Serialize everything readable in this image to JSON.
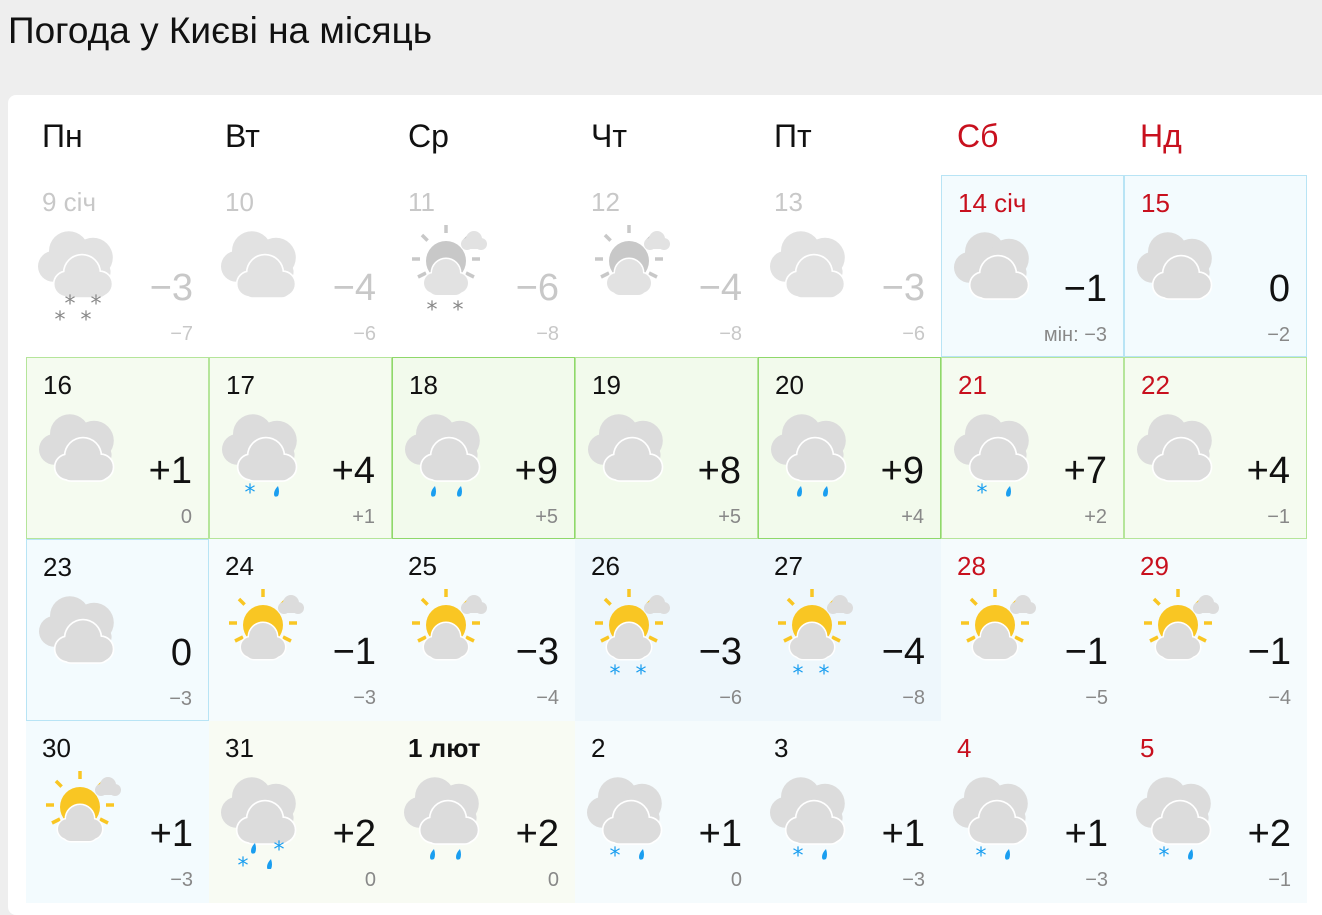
{
  "title": "Погода у Києві на місяць",
  "weekdays": [
    {
      "label": "Пн",
      "weekend": false
    },
    {
      "label": "Вт",
      "weekend": false
    },
    {
      "label": "Ср",
      "weekend": false
    },
    {
      "label": "Чт",
      "weekend": false
    },
    {
      "label": "Пт",
      "weekend": false
    },
    {
      "label": "Сб",
      "weekend": true
    },
    {
      "label": "Нд",
      "weekend": true
    }
  ],
  "colors": {
    "weekend": "#c8101e",
    "sun": "#f9c623",
    "precip": "#1a9ef0",
    "cloud": "#dcdcdc"
  },
  "days": [
    {
      "date": "9 січ",
      "past": true,
      "icon": "overcast",
      "precip": [
        "snow",
        "snow",
        "snow",
        "snow"
      ],
      "max": "−3",
      "min": "−7"
    },
    {
      "date": "10",
      "past": true,
      "icon": "overcast",
      "precip": [],
      "max": "−4",
      "min": "−6"
    },
    {
      "date": "11",
      "past": true,
      "icon": "partly-cloudy",
      "precip": [
        "snow",
        "snow"
      ],
      "max": "−6",
      "min": "−8"
    },
    {
      "date": "12",
      "past": true,
      "icon": "partly-cloudy",
      "precip": [],
      "max": "−4",
      "min": "−8"
    },
    {
      "date": "13",
      "past": true,
      "icon": "overcast",
      "precip": [],
      "max": "−3",
      "min": "−6"
    },
    {
      "date": "14 січ",
      "today": true,
      "icon": "overcast",
      "precip": [],
      "max": "−1",
      "min": "мін: −3"
    },
    {
      "date": "15",
      "icon": "overcast",
      "precip": [],
      "max": "0",
      "min": "−2"
    },
    {
      "date": "16",
      "icon": "overcast",
      "precip": [],
      "max": "+1",
      "min": "0"
    },
    {
      "date": "17",
      "icon": "overcast",
      "precip": [
        "snow",
        "rain"
      ],
      "max": "+4",
      "min": "+1"
    },
    {
      "date": "18",
      "icon": "overcast",
      "precip": [
        "rain",
        "rain"
      ],
      "max": "+9",
      "min": "+5"
    },
    {
      "date": "19",
      "icon": "overcast",
      "precip": [],
      "max": "+8",
      "min": "+5"
    },
    {
      "date": "20",
      "icon": "overcast",
      "precip": [
        "rain",
        "rain"
      ],
      "max": "+9",
      "min": "+4"
    },
    {
      "date": "21",
      "icon": "overcast",
      "precip": [
        "snow",
        "rain"
      ],
      "max": "+7",
      "min": "+2"
    },
    {
      "date": "22",
      "icon": "overcast",
      "precip": [],
      "max": "+4",
      "min": "−1"
    },
    {
      "date": "23",
      "icon": "overcast",
      "precip": [],
      "max": "0",
      "min": "−3"
    },
    {
      "date": "24",
      "icon": "partly-cloudy",
      "precip": [],
      "max": "−1",
      "min": "−3"
    },
    {
      "date": "25",
      "icon": "partly-cloudy",
      "precip": [],
      "max": "−3",
      "min": "−4"
    },
    {
      "date": "26",
      "icon": "partly-cloudy",
      "precip": [
        "snow",
        "snow"
      ],
      "max": "−3",
      "min": "−6"
    },
    {
      "date": "27",
      "icon": "partly-cloudy",
      "precip": [
        "snow",
        "snow"
      ],
      "max": "−4",
      "min": "−8"
    },
    {
      "date": "28",
      "icon": "partly-cloudy",
      "precip": [],
      "max": "−1",
      "min": "−5"
    },
    {
      "date": "29",
      "icon": "partly-cloudy",
      "precip": [],
      "max": "−1",
      "min": "−4"
    },
    {
      "date": "30",
      "icon": "partly-cloudy",
      "precip": [],
      "max": "+1",
      "min": "−3"
    },
    {
      "date": "31",
      "icon": "overcast",
      "precip": [
        "rain",
        "snow",
        "snow",
        "rain"
      ],
      "max": "+2",
      "min": "0"
    },
    {
      "date": "1 лют",
      "bold": true,
      "icon": "overcast",
      "precip": [
        "rain",
        "rain"
      ],
      "max": "+2",
      "min": "0"
    },
    {
      "date": "2",
      "icon": "overcast",
      "precip": [
        "snow",
        "rain"
      ],
      "max": "+1",
      "min": "0"
    },
    {
      "date": "3",
      "icon": "overcast",
      "precip": [
        "snow",
        "rain"
      ],
      "max": "+1",
      "min": "−3"
    },
    {
      "date": "4",
      "icon": "overcast",
      "precip": [
        "snow",
        "rain"
      ],
      "max": "+1",
      "min": "−3"
    },
    {
      "date": "5",
      "icon": "overcast",
      "precip": [
        "snow",
        "rain"
      ],
      "max": "+2",
      "min": "−1"
    }
  ]
}
